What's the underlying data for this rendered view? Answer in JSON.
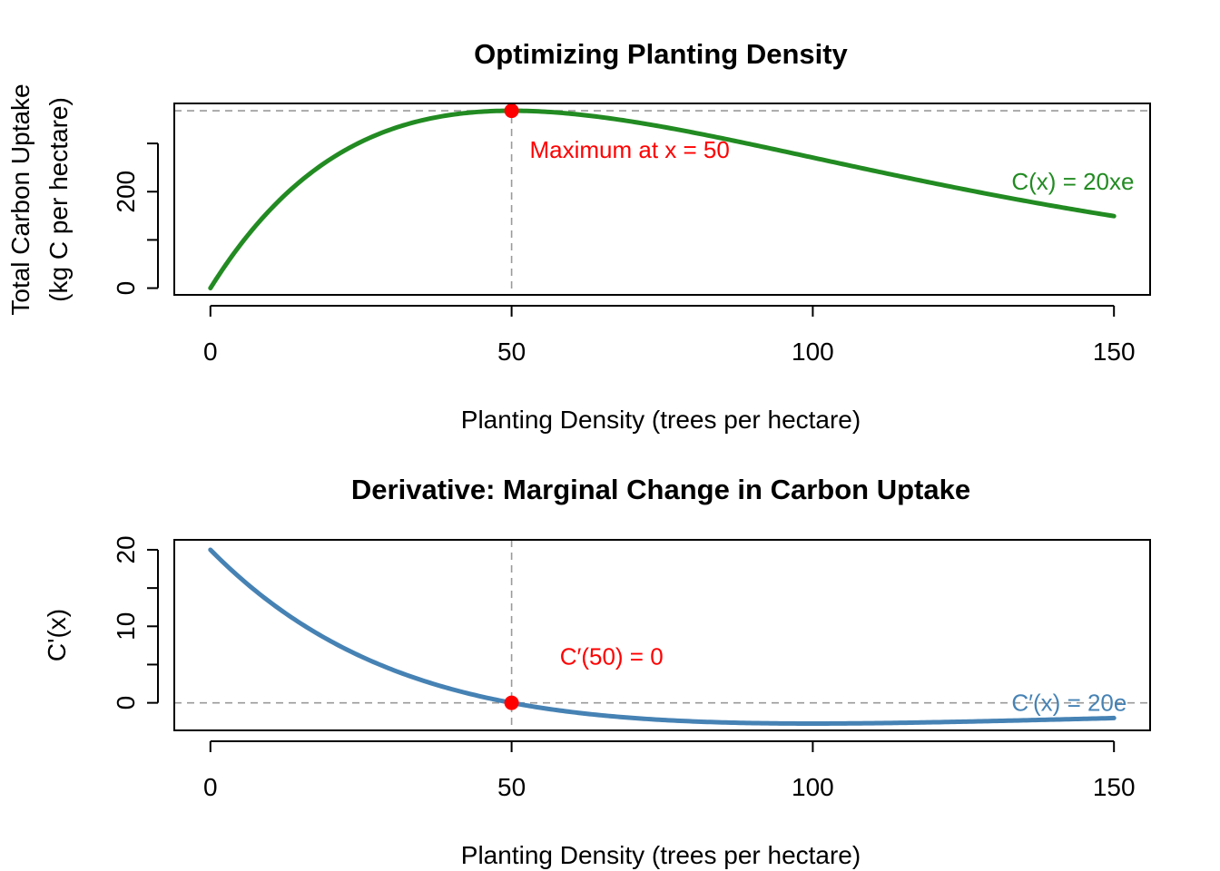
{
  "chart_data": [
    {
      "type": "line",
      "title": "Optimizing Planting Density",
      "xlabel": "Planting Density (trees per hectare)",
      "ylabel": [
        "Total Carbon Uptake",
        "(kg C per hectare)"
      ],
      "xlim": [
        -6,
        156
      ],
      "ylim": [
        -14,
        383
      ],
      "x_ticks": [
        0,
        50,
        100,
        150
      ],
      "y_ticks": [
        0,
        100,
        200,
        300
      ],
      "y_tick_labels": [
        "0",
        "",
        "200",
        ""
      ],
      "function": "20*x*exp(-x/50)",
      "x_range": [
        0,
        150
      ],
      "color": "#228B22",
      "max_point": {
        "x": 50,
        "y": 367.88,
        "color": "#FF0000"
      },
      "ref_lines": {
        "h": 367.88,
        "v": 50
      },
      "annotation": {
        "text": "Maximum at x = 50",
        "x": 53,
        "y": 270,
        "color": "#FF0000"
      },
      "formula_label": {
        "text": "C(x) = 20xe",
        "x": 133,
        "y": 221,
        "color": "#228B22"
      }
    },
    {
      "type": "line",
      "title": "Derivative: Marginal Change in Carbon Uptake",
      "xlabel": "Planting Density (trees per hectare)",
      "ylabel": [
        "C'(x)"
      ],
      "xlim": [
        -6,
        156
      ],
      "ylim": [
        -3.6,
        21.3
      ],
      "x_ticks": [
        0,
        50,
        100,
        150
      ],
      "y_ticks": [
        0,
        5,
        10,
        15,
        20
      ],
      "y_tick_labels": [
        "0",
        "",
        "10",
        "",
        "20"
      ],
      "function": "20*(1 - x/50)*exp(-x/50)",
      "x_range": [
        0,
        150
      ],
      "color": "#4682B4",
      "max_point": {
        "x": 50,
        "y": 0,
        "color": "#FF0000"
      },
      "ref_lines": {
        "h": 0,
        "v": 50
      },
      "annotation": {
        "text": "C′(50) = 0",
        "x": 58,
        "y": 5,
        "color": "#FF0000"
      },
      "formula_label": {
        "text": "C′(x) = 20e",
        "x": 133,
        "y": 0,
        "color": "#4682B4"
      }
    }
  ]
}
